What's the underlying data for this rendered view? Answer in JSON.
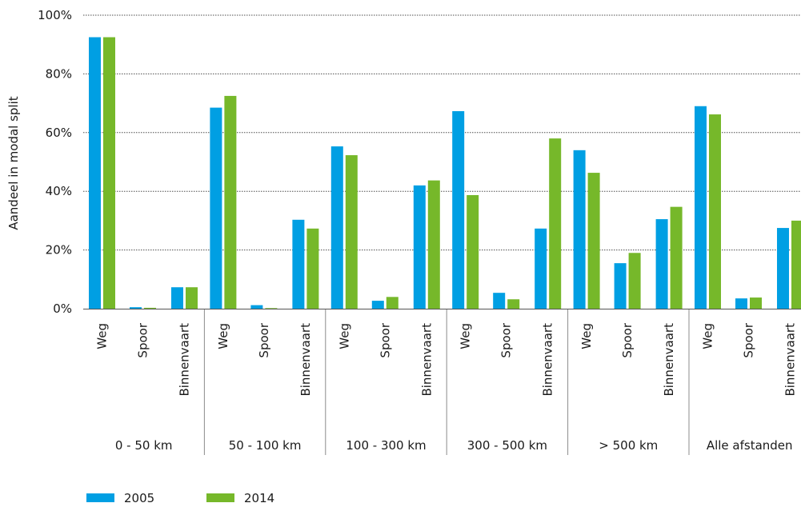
{
  "chart_data": {
    "type": "bar",
    "title": "",
    "xlabel": "",
    "ylabel": "Aandeel in modal split",
    "ylim": [
      0,
      100
    ],
    "yticks": [
      "0%",
      "20%",
      "40%",
      "60%",
      "80%",
      "100%"
    ],
    "ytick_values": [
      0,
      20,
      40,
      60,
      80,
      100
    ],
    "grid": true,
    "legend_position": "bottom-left",
    "groups": [
      "0 - 50 km",
      "50 - 100 km",
      "100 - 300 km",
      "300 - 500 km",
      "> 500 km",
      "Alle afstanden"
    ],
    "categories": [
      "Weg",
      "Spoor",
      "Binnenvaart"
    ],
    "series": [
      {
        "name": "2005",
        "color": "#009fe3",
        "values": [
          [
            92.5,
            0.5,
            7.3
          ],
          [
            68.5,
            1.2,
            30.3
          ],
          [
            55.3,
            2.7,
            42.0
          ],
          [
            67.3,
            5.4,
            27.3
          ],
          [
            54.0,
            15.5,
            30.5
          ],
          [
            69.0,
            3.5,
            27.5
          ]
        ]
      },
      {
        "name": "2014",
        "color": "#76b82a",
        "values": [
          [
            92.5,
            0.3,
            7.3
          ],
          [
            72.5,
            0.2,
            27.3
          ],
          [
            52.3,
            4.0,
            43.7
          ],
          [
            38.7,
            3.2,
            58.0
          ],
          [
            46.3,
            19.0,
            34.7
          ],
          [
            66.2,
            3.8,
            30.0
          ]
        ]
      }
    ]
  }
}
